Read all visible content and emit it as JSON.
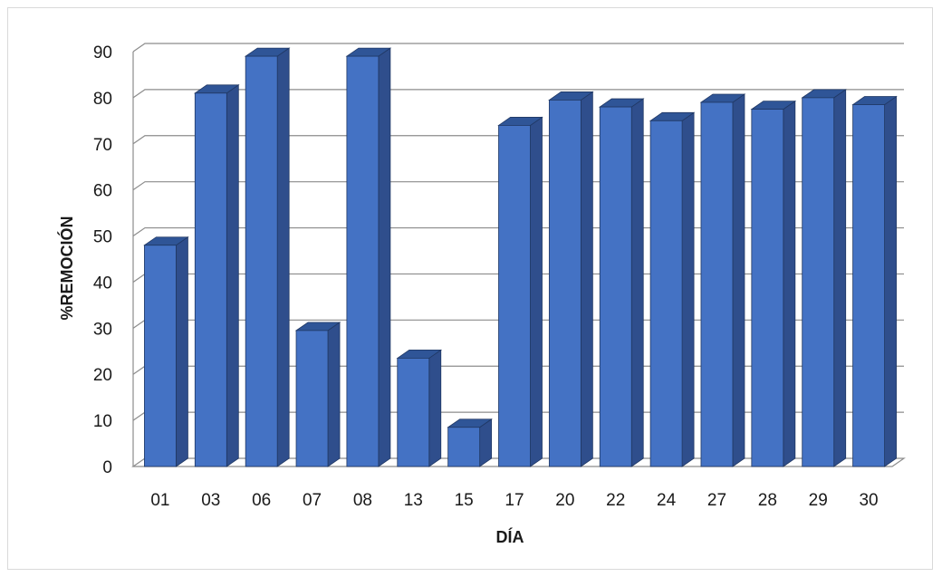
{
  "chart_data": {
    "type": "bar",
    "title": "",
    "xlabel": "DÍA",
    "ylabel": "%REMOCIÓN",
    "categories": [
      "01",
      "03",
      "06",
      "07",
      "08",
      "13",
      "15",
      "17",
      "20",
      "22",
      "24",
      "27",
      "28",
      "29",
      "30"
    ],
    "values": [
      48,
      81,
      89,
      29.5,
      89,
      23.5,
      8.5,
      74,
      79.5,
      78,
      75,
      79,
      77.5,
      80,
      78.5
    ],
    "ylim": [
      0,
      90
    ],
    "yticks": [
      0,
      10,
      20,
      30,
      40,
      50,
      60,
      70,
      80,
      90
    ],
    "grid": true,
    "legend": "none",
    "colors": {
      "bar_front": "#4472C4",
      "bar_side": "#2F4E8C",
      "bar_top": "#2F5597",
      "gridline": "#8c8c8c",
      "wall": "#ffffff"
    }
  }
}
